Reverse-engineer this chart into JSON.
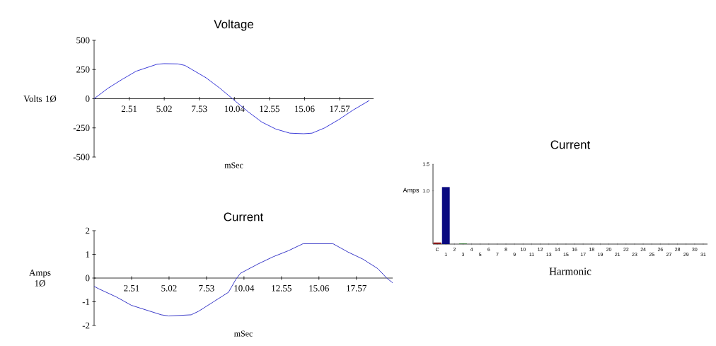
{
  "chart_data": [
    {
      "type": "line",
      "title": "Voltage",
      "xlabel": "mSec",
      "ylabel": "Volts 1Ø",
      "xlim": [
        0,
        20
      ],
      "ylim": [
        -500,
        500
      ],
      "xticks": [
        2.51,
        5.02,
        7.53,
        10.04,
        12.55,
        15.06,
        17.57
      ],
      "yticks": [
        -500,
        -250,
        0,
        250,
        500
      ],
      "marker": "none",
      "series": [
        {
          "color": "#3a3ad8",
          "x": [
            0,
            1,
            2,
            3,
            4,
            4.5,
            5,
            6,
            6.5,
            7,
            8,
            9,
            9.9,
            11,
            12,
            13,
            14,
            15,
            15.6,
            16.5,
            17.5,
            18.5,
            19.7
          ],
          "values": [
            0,
            90,
            165,
            235,
            275,
            295,
            300,
            298,
            285,
            250,
            180,
            90,
            0,
            -110,
            -200,
            -260,
            -295,
            -300,
            -295,
            -250,
            -180,
            -100,
            -15
          ]
        }
      ]
    },
    {
      "type": "line",
      "title": "Current",
      "xlabel": "mSec",
      "ylabel": "Amps 1Ø",
      "xlim": [
        0,
        20
      ],
      "ylim": [
        -2,
        2
      ],
      "xticks": [
        2.51,
        5.02,
        7.53,
        10.04,
        12.55,
        15.06,
        17.57
      ],
      "yticks": [
        -2,
        -1,
        0,
        1,
        2
      ],
      "marker": "none",
      "series": [
        {
          "color": "#3a3ac8",
          "x": [
            0,
            0.3,
            1.5,
            2.5,
            3.5,
            4.5,
            5,
            6.5,
            7,
            8,
            9,
            9.5,
            9.8,
            11,
            12,
            13,
            14,
            16,
            17,
            18,
            19,
            19.6,
            20
          ],
          "values": [
            -0.35,
            -0.45,
            -0.8,
            -1.15,
            -1.35,
            -1.55,
            -1.6,
            -1.55,
            -1.4,
            -1.0,
            -0.6,
            -0.05,
            0.2,
            0.6,
            0.9,
            1.15,
            1.45,
            1.45,
            1.1,
            0.8,
            0.4,
            0.0,
            -0.2
          ]
        }
      ]
    },
    {
      "type": "bar",
      "title": "Current",
      "xlabel": "Harmonic",
      "ylabel": "Amps",
      "ylim": [
        0,
        1.5
      ],
      "yticks": [
        {
          "value": 1,
          "label": "1.0"
        },
        1.5
      ],
      "categories": [
        "C",
        "1",
        "2",
        "3",
        "4",
        "5",
        "6",
        "7",
        "8",
        "9",
        "10",
        "11",
        "12",
        "13",
        "14",
        "15",
        "16",
        "17",
        "18",
        "19",
        "20",
        "21",
        "22",
        "23",
        "24",
        "25",
        "26",
        "27",
        "28",
        "29",
        "30",
        "31"
      ],
      "values": [
        0.03,
        1.07,
        0,
        0.01,
        0,
        0,
        0,
        0,
        0,
        0,
        0,
        0,
        0,
        0,
        0,
        0,
        0,
        0,
        0,
        0,
        0,
        0,
        0,
        0,
        0,
        0,
        0,
        0,
        0,
        0,
        0,
        0
      ],
      "colors": [
        "#8b1a1a",
        "#0a0a80",
        "#0a0a80",
        "#1a6a1a",
        "#0a0a80",
        "#0a0a80",
        "#0a0a80",
        "#0a0a80",
        "#0a0a80",
        "#0a0a80",
        "#0a0a80",
        "#0a0a80",
        "#0a0a80",
        "#0a0a80",
        "#0a0a80",
        "#0a0a80",
        "#0a0a80",
        "#0a0a80",
        "#0a0a80",
        "#0a0a80",
        "#0a0a80",
        "#0a0a80",
        "#0a0a80",
        "#0a0a80",
        "#0a0a80",
        "#0a0a80",
        "#0a0a80",
        "#0a0a80",
        "#0a0a80",
        "#0a0a80",
        "#0a0a80",
        "#0a0a80"
      ]
    }
  ]
}
